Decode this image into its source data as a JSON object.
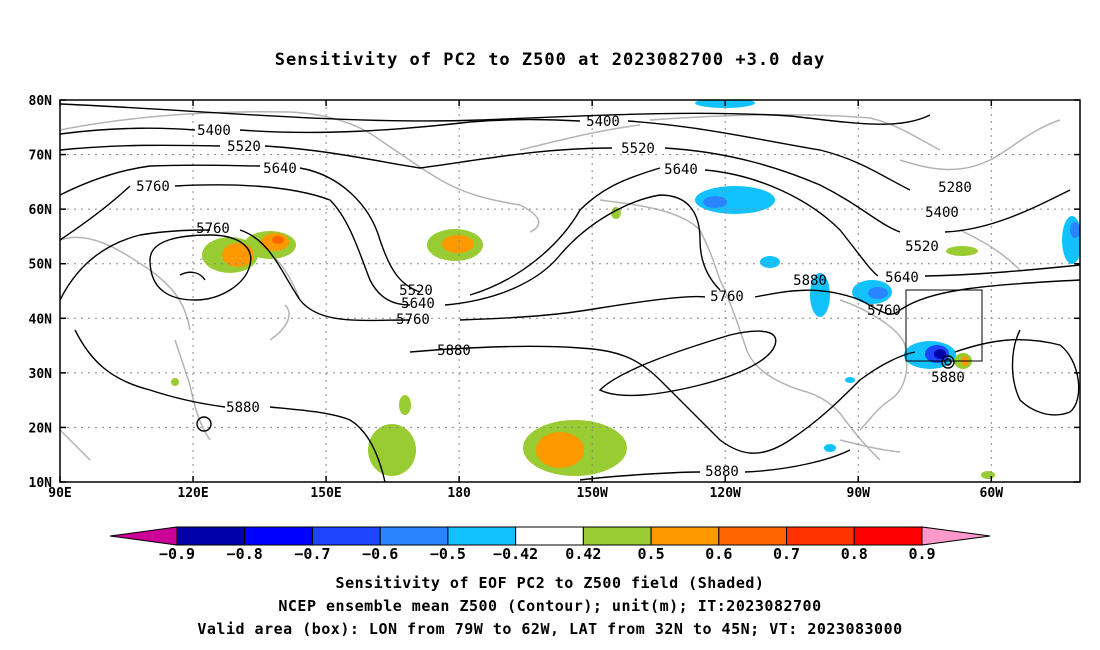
{
  "title": "Sensitivity of PC2 to Z500 at 2023082700 +3.0 day",
  "axes": {
    "lat_labels": [
      "80N",
      "70N",
      "60N",
      "50N",
      "40N",
      "30N",
      "20N",
      "10N"
    ],
    "lon_labels": [
      "90E",
      "120E",
      "150E",
      "180",
      "150W",
      "120W",
      "90W",
      "60W"
    ]
  },
  "contour_levels": [
    5280,
    5400,
    5520,
    5640,
    5760,
    5880
  ],
  "contour_labels": [
    {
      "text": "5400"
    },
    {
      "text": "5520"
    },
    {
      "text": "5640"
    },
    {
      "text": "5760"
    },
    {
      "text": "5760"
    },
    {
      "text": "5400"
    },
    {
      "text": "5520"
    },
    {
      "text": "5640"
    },
    {
      "text": "5280"
    },
    {
      "text": "5400"
    },
    {
      "text": "5520"
    },
    {
      "text": "5640"
    },
    {
      "text": "5760"
    },
    {
      "text": "5880"
    },
    {
      "text": "5520"
    },
    {
      "text": "5640"
    },
    {
      "text": "5760"
    },
    {
      "text": "5880"
    },
    {
      "text": "5760"
    },
    {
      "text": "5880"
    },
    {
      "text": "5880"
    },
    {
      "text": "5880"
    }
  ],
  "colorbar": {
    "labels": [
      "-0.9",
      "-0.8",
      "-0.7",
      "-0.6",
      "-0.5",
      "-0.42",
      "0.42",
      "0.5",
      "0.6",
      "0.7",
      "0.8",
      "0.9"
    ],
    "colors": {
      "below": "#cc0099",
      "bins": [
        "#0000aa",
        "#0000ff",
        "#1e44ff",
        "#2a84ff",
        "#12c2ff",
        "#ffffff",
        "#99cc33",
        "#ff9900",
        "#ff6600",
        "#ff3300",
        "#ff0000"
      ],
      "above": "#ff99cc"
    }
  },
  "valid_box": {
    "lon_from": "79W",
    "lon_to": "62W",
    "lat_from": "32N",
    "lat_to": "45N"
  },
  "footer": {
    "line1": "Sensitivity of EOF PC2 to Z500 field (Shaded)",
    "line2": "NCEP ensemble mean Z500 (Contour); unit(m); IT:2023082700",
    "line3": "Valid area (box): LON from 79W to 62W, LAT from 32N to 45N; VT: 2023083000"
  }
}
